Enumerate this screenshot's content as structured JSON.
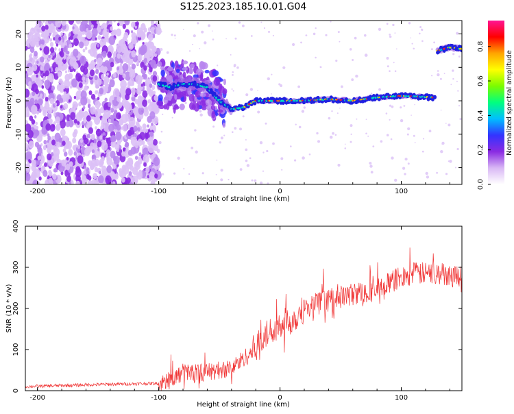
{
  "title": "S125.2023.185.10.01.G04",
  "chart_data": [
    {
      "type": "heatmap",
      "xlabel": "Height of straight line (km)",
      "ylabel": "Frequency (Hz)",
      "xlim": [
        -210,
        150
      ],
      "ylim": [
        -25,
        24
      ],
      "xticks": [
        -200,
        -100,
        0,
        100
      ],
      "yticks": [
        -20,
        -10,
        0,
        10,
        20
      ],
      "colorbar": {
        "label": "Normalized spectral amplitude",
        "range": [
          0,
          0.95
        ],
        "ticks": [
          "0.0",
          "0.2",
          "0.4",
          "0.6",
          "0.8"
        ],
        "colors": [
          "#ffffff",
          "#d9b8f5",
          "#8a2be2",
          "#3333ff",
          "#00bfff",
          "#00ff7f",
          "#7cfc00",
          "#ffff00",
          "#ffa500",
          "#ff0000",
          "#ff1493"
        ]
      },
      "track": {
        "noise_region_x": [
          -210,
          -100
        ],
        "ridge": [
          {
            "x": -100,
            "freq": 5
          },
          {
            "x": -90,
            "freq": 4
          },
          {
            "x": -80,
            "freq": 5
          },
          {
            "x": -70,
            "freq": 5
          },
          {
            "x": -60,
            "freq": 4
          },
          {
            "x": -50,
            "freq": 0
          },
          {
            "x": -40,
            "freq": -2.5
          },
          {
            "x": -30,
            "freq": -2
          },
          {
            "x": -20,
            "freq": 0
          },
          {
            "x": 0,
            "freq": 0
          },
          {
            "x": 20,
            "freq": 0
          },
          {
            "x": 40,
            "freq": 0.5
          },
          {
            "x": 60,
            "freq": 0
          },
          {
            "x": 80,
            "freq": 1
          },
          {
            "x": 100,
            "freq": 1.5
          },
          {
            "x": 128,
            "freq": 1
          }
        ],
        "secondary": [
          {
            "x": 130,
            "freq": 15
          },
          {
            "x": 140,
            "freq": 16
          },
          {
            "x": 150,
            "freq": 15.5
          }
        ]
      }
    },
    {
      "type": "line",
      "xlabel": "Height of straight line (km)",
      "ylabel": "SNR (10 * v/v)",
      "xlim": [
        -210,
        150
      ],
      "ylim": [
        0,
        400
      ],
      "xticks": [
        -200,
        -100,
        0,
        100
      ],
      "yticks": [
        0,
        100,
        200,
        300,
        400
      ],
      "line_color": "#f03232",
      "trend": [
        {
          "x": -210,
          "y": 10
        },
        {
          "x": -150,
          "y": 15
        },
        {
          "x": -100,
          "y": 18
        },
        {
          "x": -90,
          "y": 25
        },
        {
          "x": -80,
          "y": 45
        },
        {
          "x": -60,
          "y": 45
        },
        {
          "x": -40,
          "y": 55
        },
        {
          "x": -25,
          "y": 90
        },
        {
          "x": -10,
          "y": 140
        },
        {
          "x": 0,
          "y": 165
        },
        {
          "x": 10,
          "y": 170
        },
        {
          "x": 20,
          "y": 200
        },
        {
          "x": 40,
          "y": 220
        },
        {
          "x": 60,
          "y": 235
        },
        {
          "x": 80,
          "y": 245
        },
        {
          "x": 95,
          "y": 270
        },
        {
          "x": 110,
          "y": 285
        },
        {
          "x": 130,
          "y": 285
        },
        {
          "x": 150,
          "y": 280
        }
      ]
    }
  ]
}
